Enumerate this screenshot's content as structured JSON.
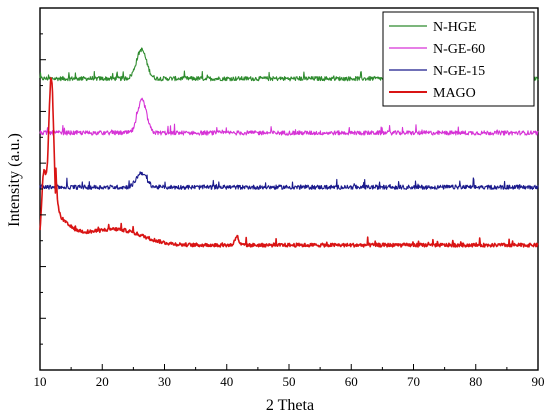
{
  "chart_data": {
    "type": "line",
    "xlabel": "2 Theta",
    "ylabel": "Intensity (a.u.)",
    "xlim": [
      10,
      90
    ],
    "xticks": [
      10,
      20,
      30,
      40,
      50,
      60,
      70,
      80,
      90
    ],
    "yticks_labeled": false,
    "grid": false,
    "legend_position": "top-right",
    "series": [
      {
        "name": "N-HGE",
        "color": "#2e8b2e",
        "baseline": 0.805,
        "noise": 0.012,
        "peaks": [
          {
            "x": 26.3,
            "height": 0.08,
            "width": 0.8
          }
        ]
      },
      {
        "name": "N-GE-60",
        "color": "#d633d6",
        "baseline": 0.655,
        "noise": 0.012,
        "peaks": [
          {
            "x": 26.4,
            "height": 0.09,
            "width": 0.7
          }
        ]
      },
      {
        "name": "N-GE-15",
        "color": "#1a1a8c",
        "baseline": 0.505,
        "noise": 0.012,
        "peaks": [
          {
            "x": 26.3,
            "height": 0.04,
            "width": 0.8
          }
        ]
      },
      {
        "name": "MAGO",
        "color": "#d91414",
        "baseline": 0.345,
        "noise": 0.01,
        "peaks": [
          {
            "x": 10.6,
            "height": 0.19,
            "width": 0.35
          },
          {
            "x": 11.8,
            "height": 0.46,
            "width": 0.45
          },
          {
            "x": 22.5,
            "height": 0.04,
            "width": 4.0
          },
          {
            "x": 41.6,
            "height": 0.025,
            "width": 0.3
          }
        ],
        "decay": {
          "height": 0.1,
          "tau": 3.0,
          "start": 12.5
        }
      }
    ]
  }
}
